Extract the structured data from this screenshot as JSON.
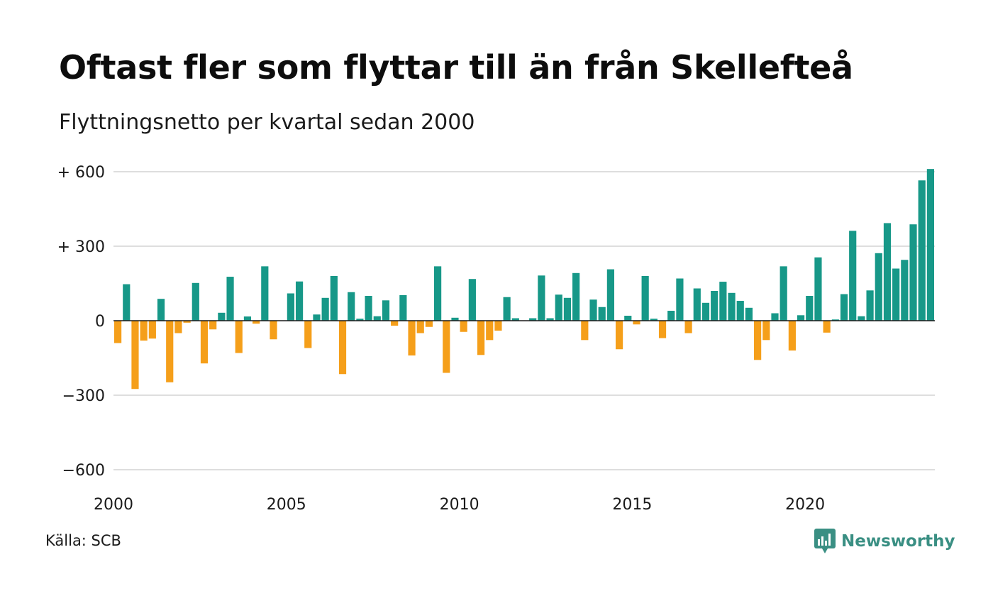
{
  "title": "Oftast fler som flyttar till än från Skellefteå",
  "subtitle": "Flyttningsnetto per kvartal sedan 2000",
  "source": "Källa: SCB",
  "brand": "Newsworthy",
  "colors": {
    "positive": "#179888",
    "negative": "#f59f1a",
    "grid": "#dedede",
    "zero": "#1a1a1a",
    "brand": "#3a8f83"
  },
  "chart_data": {
    "type": "bar",
    "title": "",
    "xlabel": "",
    "ylabel": "",
    "ylim": [
      -600,
      600
    ],
    "yticks": [
      {
        "value": 600,
        "label": "+ 600"
      },
      {
        "value": 300,
        "label": "+ 300"
      },
      {
        "value": 0,
        "label": "0"
      },
      {
        "value": -300,
        "label": "−300"
      },
      {
        "value": -600,
        "label": "−600"
      }
    ],
    "xticks": [
      {
        "value": 2000,
        "label": "2000"
      },
      {
        "value": 2005,
        "label": "2005"
      },
      {
        "value": 2010,
        "label": "2010"
      },
      {
        "value": 2015,
        "label": "2015"
      },
      {
        "value": 2020,
        "label": "2020"
      }
    ],
    "grid": true,
    "legend": "none",
    "series": [
      {
        "start_year": 2000,
        "periods_per_year": 4,
        "values": [
          -90,
          147,
          -275,
          -80,
          -72,
          88,
          -248,
          -50,
          -8,
          152,
          -172,
          -35,
          32,
          177,
          -130,
          17,
          -12,
          219,
          -75,
          0,
          110,
          158,
          -110,
          25,
          92,
          180,
          -215,
          115,
          8,
          100,
          18,
          82,
          -20,
          103,
          -140,
          -50,
          -25,
          219,
          -210,
          12,
          -45,
          168,
          -138,
          -78,
          -40,
          95,
          10,
          0,
          10,
          182,
          10,
          105,
          92,
          192,
          -78,
          85,
          55,
          207,
          -115,
          20,
          -15,
          180,
          8,
          -70,
          40,
          170,
          -50,
          130,
          72,
          120,
          157,
          112,
          80,
          52,
          -158,
          -78,
          30,
          219,
          -120,
          22,
          100,
          255,
          -48,
          5,
          107,
          362,
          18,
          122,
          272,
          393,
          210,
          245,
          388,
          565,
          611
        ]
      }
    ]
  }
}
